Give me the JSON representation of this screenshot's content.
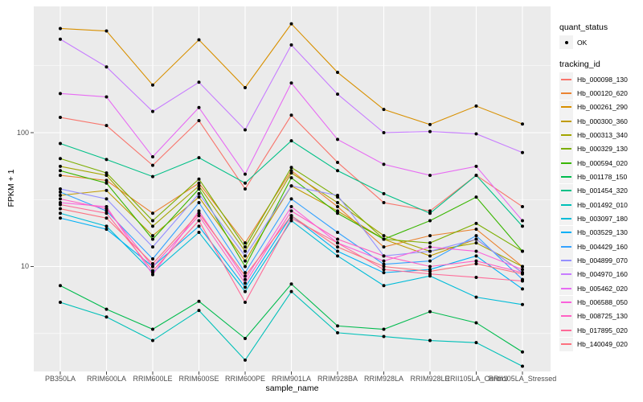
{
  "axes": {
    "x_title": "sample_name",
    "y_title": "FPKM + 1",
    "y_tick_labels": [
      "100",
      "10"
    ]
  },
  "legend": {
    "quant_status": {
      "title": "quant_status",
      "items": [
        {
          "label": "OK",
          "marker": "black-point"
        }
      ]
    },
    "tracking": {
      "title": "tracking_id"
    }
  },
  "colors": {
    "panel_bg": "#EBEBEB",
    "gridline": "#FFFFFF",
    "tick_mark": "#333333",
    "tick_text": "#4D4D4D",
    "point": "#000000"
  },
  "chart_data": {
    "type": "line",
    "title": "",
    "xlabel": "sample_name",
    "ylabel": "FPKM + 1",
    "y_scale": "log10",
    "ylim": [
      1.6,
      880
    ],
    "y_ticks": [
      100,
      10
    ],
    "y_minor_ticks": [
      316.23,
      31.62,
      3.16
    ],
    "grid": "on",
    "legend_position": "right",
    "point_marker": {
      "shape": "small-black-point",
      "meaning": "quant_status OK"
    },
    "categories": [
      "PB350LA",
      "RRIM600LA",
      "RRIM600LE",
      "RRIM600SE",
      "RRIM600PE",
      "RRIM901LA",
      "RRIM928BA",
      "RRIM928LA",
      "RRIM928LE",
      "RRII105LA_Control",
      "RRII105LA_Stressed"
    ],
    "series": [
      {
        "name": "Hb_000098_130",
        "color": "#F8766D",
        "values": [
          130,
          113,
          57,
          123,
          38,
          135,
          60,
          30,
          26,
          48,
          28
        ]
      },
      {
        "name": "Hb_000120_620",
        "color": "#EA8331",
        "values": [
          48,
          44,
          25,
          42,
          15,
          52,
          28,
          14,
          17,
          19,
          10
        ]
      },
      {
        "name": "Hb_000261_290",
        "color": "#D89000",
        "values": [
          600,
          575,
          227,
          494,
          217,
          650,
          282,
          149,
          115,
          158,
          116
        ]
      },
      {
        "name": "Hb_000300_360",
        "color": "#C09B00",
        "values": [
          34,
          37,
          17,
          33,
          11,
          40,
          26,
          16,
          12,
          16,
          9
        ]
      },
      {
        "name": "Hb_000313_340",
        "color": "#A3A500",
        "values": [
          56,
          48,
          20,
          40,
          13,
          50,
          30,
          17,
          13,
          15,
          10
        ]
      },
      {
        "name": "Hb_000329_130",
        "color": "#7CAE00",
        "values": [
          64,
          50,
          22,
          45,
          14,
          55,
          33,
          16,
          15,
          21,
          13
        ]
      },
      {
        "name": "Hb_000594_020",
        "color": "#39B600",
        "values": [
          52,
          42,
          16,
          38,
          10,
          46,
          25,
          16,
          22,
          33,
          13
        ]
      },
      {
        "name": "Hb_001178_150",
        "color": "#00BB4E",
        "values": [
          7.2,
          4.8,
          3.4,
          5.5,
          2.9,
          7.4,
          3.6,
          3.4,
          4.6,
          3.8,
          2.3
        ]
      },
      {
        "name": "Hb_001454_320",
        "color": "#00C087",
        "values": [
          83,
          63,
          47,
          65,
          42,
          87,
          52,
          35,
          25,
          48,
          20
        ]
      },
      {
        "name": "Hb_001492_010",
        "color": "#00C0B8",
        "values": [
          5.4,
          4.2,
          2.8,
          4.7,
          2.0,
          6.5,
          3.2,
          3.0,
          2.8,
          2.7,
          1.8
        ]
      },
      {
        "name": "Hb_003097_180",
        "color": "#00BCD8",
        "values": [
          25,
          20,
          9,
          18,
          6.5,
          22,
          12,
          7.2,
          8.5,
          5.9,
          5.2
        ]
      },
      {
        "name": "Hb_003529_130",
        "color": "#00B0F6",
        "values": [
          23,
          19,
          10,
          20,
          7,
          24,
          13,
          9,
          9.5,
          12,
          6.8
        ]
      },
      {
        "name": "Hb_004429_160",
        "color": "#35A2FF",
        "values": [
          36,
          26,
          11.4,
          30,
          9,
          32,
          18,
          10.4,
          11,
          17,
          8
        ]
      },
      {
        "name": "Hb_004899_070",
        "color": "#9590FF",
        "values": [
          38,
          32,
          14,
          35,
          12,
          40,
          34,
          12,
          13,
          16,
          9
        ]
      },
      {
        "name": "Hb_004970_160",
        "color": "#C77CFF",
        "values": [
          499,
          310,
          144,
          238,
          105,
          452,
          194,
          100,
          102,
          98,
          71
        ]
      },
      {
        "name": "Hb_005462_020",
        "color": "#E76BF3",
        "values": [
          196,
          185,
          66,
          154,
          49,
          235,
          89,
          58,
          48,
          56,
          22
        ]
      },
      {
        "name": "Hb_006588_050",
        "color": "#FA62DB",
        "values": [
          30,
          28,
          8.7,
          26,
          8,
          28,
          15,
          11,
          14,
          13,
          9.5
        ]
      },
      {
        "name": "Hb_008725_130",
        "color": "#FF61C3",
        "values": [
          32,
          27,
          10,
          24,
          7.5,
          26,
          16,
          12,
          10,
          11,
          9
        ]
      },
      {
        "name": "Hb_017895_020",
        "color": "#FF6A98",
        "values": [
          29,
          25,
          9.3,
          22,
          5.4,
          23,
          15,
          9.5,
          8.8,
          8.3,
          7.8
        ]
      },
      {
        "name": "Hb_140049_020",
        "color": "#FC717F",
        "values": [
          27,
          23,
          10.5,
          25,
          8.5,
          24,
          14,
          10,
          9.2,
          10.5,
          8.8
        ]
      }
    ]
  }
}
